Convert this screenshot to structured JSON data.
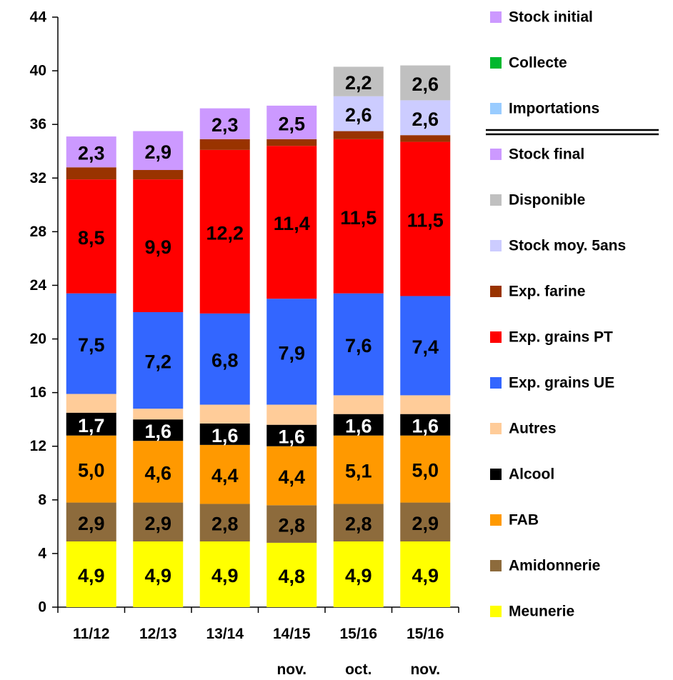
{
  "chart_data": {
    "type": "stacked_bar",
    "categories": [
      "11/12",
      "12/13",
      "13/14",
      "14/15\nnov.",
      "15/16\noct.",
      "15/16\nnov."
    ],
    "ylim": [
      0,
      44
    ],
    "yticks": [
      0,
      4,
      8,
      12,
      16,
      20,
      24,
      28,
      32,
      36,
      40,
      44
    ],
    "series": [
      {
        "name": "Stock initial",
        "color": "#cc99ff",
        "values": [
          null,
          null,
          null,
          null,
          null,
          null
        ]
      },
      {
        "name": "Collecte",
        "color": "#00b82e",
        "values": [
          null,
          null,
          null,
          null,
          null,
          null
        ]
      },
      {
        "name": "Importations",
        "color": "#99ccff",
        "values": [
          null,
          null,
          null,
          null,
          null,
          null
        ]
      },
      {
        "name": "Stock final",
        "color": "#cc99ff",
        "values": [
          2.3,
          2.9,
          2.3,
          2.5,
          null,
          null
        ],
        "value_labels": [
          "2,3",
          "2,9",
          "2,3",
          "2,5",
          null,
          null
        ]
      },
      {
        "name": "Disponible",
        "color": "#c0c0c0",
        "values": [
          null,
          null,
          null,
          null,
          2.2,
          2.6
        ],
        "value_labels": [
          null,
          null,
          null,
          null,
          "2,2",
          "2,6"
        ]
      },
      {
        "name": "Stock moy. 5ans",
        "color": "#ccccff",
        "values": [
          null,
          null,
          null,
          null,
          2.6,
          2.6
        ],
        "value_labels": [
          null,
          null,
          null,
          null,
          "2,6",
          "2,6"
        ]
      },
      {
        "name": "Exp. farine",
        "color": "#993300",
        "values": [
          0.9,
          0.7,
          0.8,
          0.5,
          0.6,
          0.5
        ]
      },
      {
        "name": "Exp. grains PT",
        "color": "#ff0000",
        "values": [
          8.5,
          9.9,
          12.2,
          11.4,
          11.5,
          11.5
        ],
        "value_labels": [
          "8,5",
          "9,9",
          "12,2",
          "11,4",
          "11,5",
          "11,5"
        ]
      },
      {
        "name": "Exp. grains UE",
        "color": "#3366ff",
        "values": [
          7.5,
          7.2,
          6.8,
          7.9,
          7.6,
          7.4
        ],
        "value_labels": [
          "7,5",
          "7,2",
          "6,8",
          "7,9",
          "7,6",
          "7,4"
        ]
      },
      {
        "name": "Autres",
        "color": "#ffcc99",
        "values": [
          1.4,
          0.8,
          1.4,
          1.5,
          1.4,
          1.4
        ]
      },
      {
        "name": "Alcool",
        "color": "#000000",
        "values": [
          1.7,
          1.6,
          1.6,
          1.6,
          1.6,
          1.6
        ],
        "value_labels": [
          "1,7",
          "1,6",
          "1,6",
          "1,6",
          "1,6",
          "1,6"
        ]
      },
      {
        "name": "FAB",
        "color": "#ff9900",
        "values": [
          5.0,
          4.6,
          4.4,
          4.4,
          5.1,
          5.0
        ],
        "value_labels": [
          "5,0",
          "4,6",
          "4,4",
          "4,4",
          "5,1",
          "5,0"
        ]
      },
      {
        "name": "Amidonnerie",
        "color": "#8d6b3c",
        "values": [
          2.9,
          2.9,
          2.8,
          2.8,
          2.8,
          2.9
        ],
        "value_labels": [
          "2,9",
          "2,9",
          "2,8",
          "2,8",
          "2,8",
          "2,9"
        ]
      },
      {
        "name": "Meunerie",
        "color": "#ffff00",
        "values": [
          4.9,
          4.9,
          4.9,
          4.8,
          4.9,
          4.9
        ],
        "value_labels": [
          "4,9",
          "4,9",
          "4,9",
          "4,8",
          "4,9",
          "4,9"
        ]
      }
    ]
  }
}
